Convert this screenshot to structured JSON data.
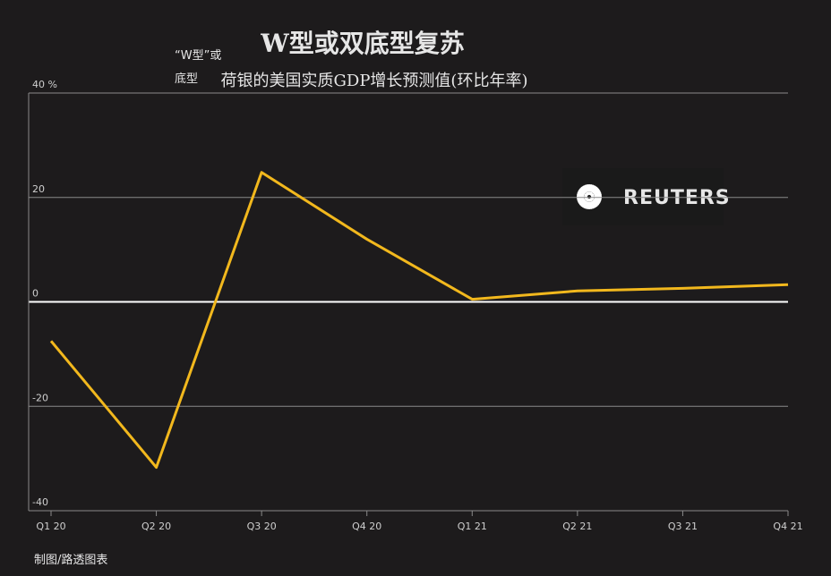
{
  "chart_data": {
    "type": "line",
    "title": "W型或双底型复苏",
    "subtitle": "荷银的美国实质GDP增长预测值(环比年率)",
    "annotations": [
      "“W型”或",
      "底型"
    ],
    "logo": "REUTERS",
    "source": "制图/路透图表",
    "categories": [
      "Q1 20",
      "Q2 20",
      "Q3 20",
      "Q4 20",
      "Q1 21",
      "Q2 21",
      "Q3 21",
      "Q4 21"
    ],
    "series": [
      {
        "color": "#f2b81d",
        "values": [
          -7.5,
          -31.7,
          24.8,
          12,
          0.5,
          2.1,
          2.6,
          3.3
        ]
      }
    ],
    "ylim": [
      -40,
      40
    ],
    "yticks": [
      -40,
      -20,
      0,
      20,
      {
        "value": 40,
        "label": "40 %"
      }
    ],
    "grid": true
  }
}
